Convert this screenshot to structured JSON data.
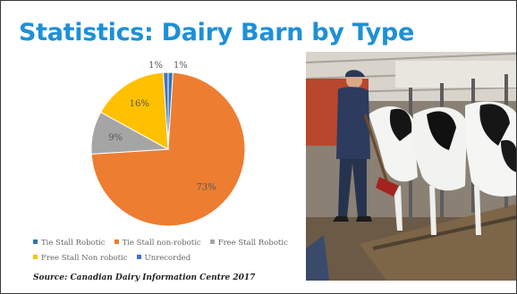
{
  "slide": {
    "title": "Statistics: Dairy Barn by Type",
    "source": "Source:  Canadian Dairy Information Centre 2017",
    "photo_alt": "Farmer in a tie-stall dairy barn with Holstein cows"
  },
  "chart_data": {
    "type": "pie",
    "title": "",
    "slices": [
      {
        "name": "Tie Stall Robotic",
        "value": 1,
        "label": "1%",
        "color": "#2e75b6"
      },
      {
        "name": "Tie Stall non-robotic",
        "value": 73,
        "label": "73%",
        "color": "#ed7d31"
      },
      {
        "name": "Free Stall Robotic",
        "value": 9,
        "label": "9%",
        "color": "#a5a5a5"
      },
      {
        "name": "Free Stall Non robotic",
        "value": 16,
        "label": "16%",
        "color": "#ffc000"
      },
      {
        "name": "Unrecorded",
        "value": 1,
        "label": "1%",
        "color": "#4472c4"
      }
    ],
    "legend_position": "bottom"
  },
  "colors": {
    "title": "#1e90d6"
  }
}
